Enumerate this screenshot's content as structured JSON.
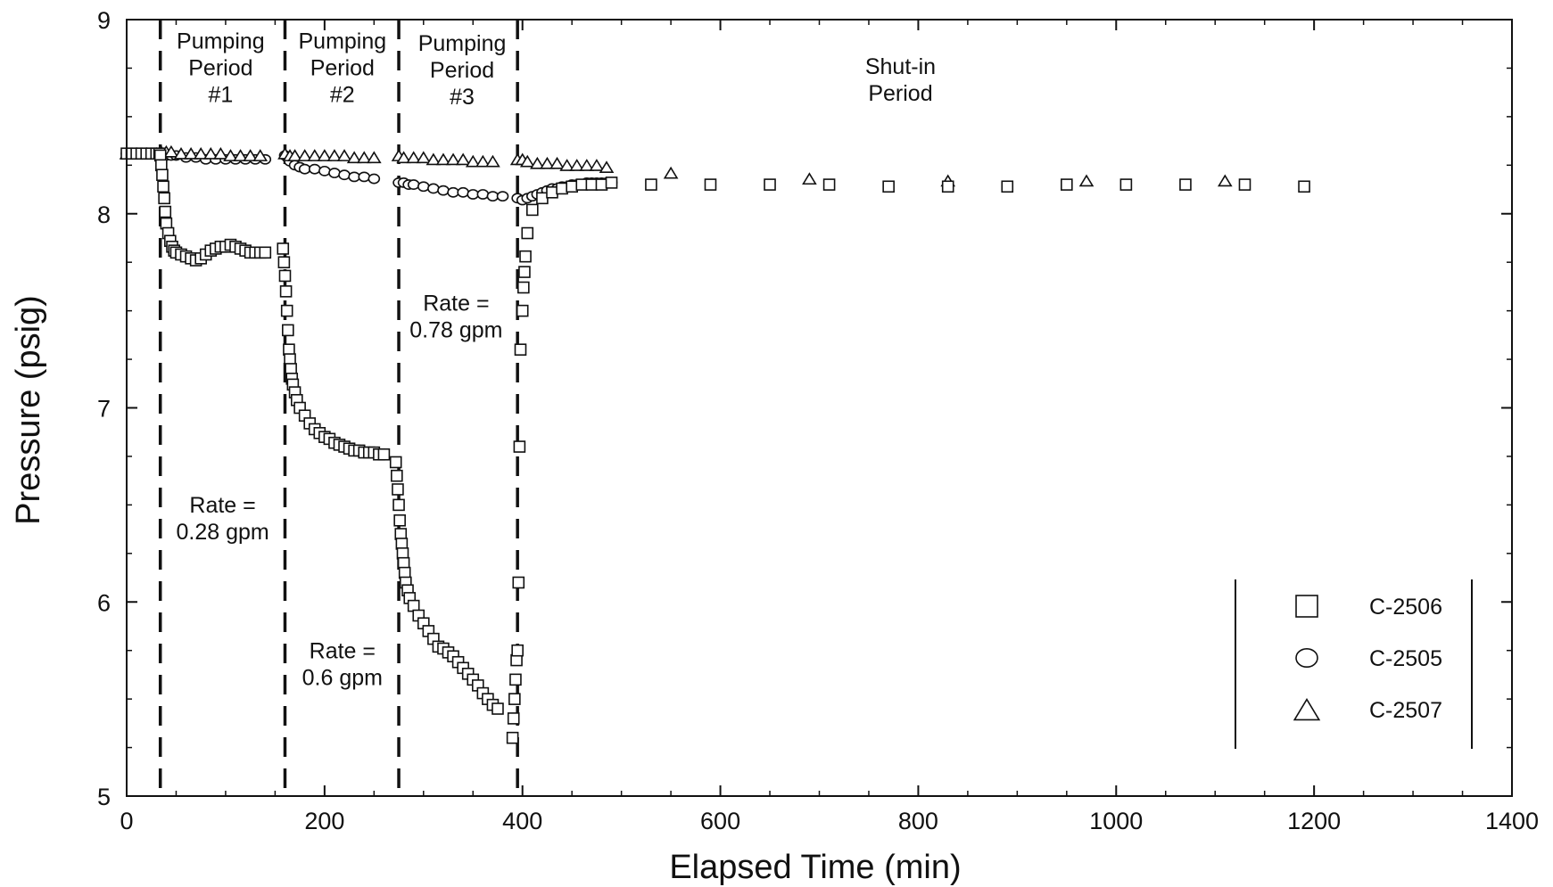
{
  "chart_data": {
    "type": "scatter",
    "xlabel": "Elapsed Time (min)",
    "ylabel": "Pressure (psig)",
    "xlim": [
      0,
      1400
    ],
    "ylim": [
      5,
      9
    ],
    "xticks": [
      0,
      200,
      400,
      600,
      800,
      1000,
      1200,
      1400
    ],
    "yticks": [
      5,
      6,
      7,
      8,
      9
    ],
    "grid": false,
    "legend_position": "bottom-right",
    "period_boundaries": [
      34,
      160,
      275,
      395
    ],
    "annotations": [
      {
        "lines": [
          "Pumping",
          "Period",
          "#1"
        ],
        "x": 95,
        "y": 8.85
      },
      {
        "lines": [
          "Pumping",
          "Period",
          "#2"
        ],
        "x": 218,
        "y": 8.85
      },
      {
        "lines": [
          "Pumping",
          "Period",
          "#3"
        ],
        "x": 339,
        "y": 8.84
      },
      {
        "lines": [
          "Shut-in",
          "Period"
        ],
        "x": 782,
        "y": 8.72
      },
      {
        "lines": [
          "Rate =",
          "0.78 gpm"
        ],
        "x": 333,
        "y": 7.5
      },
      {
        "lines": [
          "Rate =",
          "0.28 gpm"
        ],
        "x": 97,
        "y": 6.46
      },
      {
        "lines": [
          "Rate =",
          "0.6 gpm"
        ],
        "x": 218,
        "y": 5.71
      }
    ],
    "series": [
      {
        "name": "C-2506",
        "marker": "square",
        "x": [
          0,
          5,
          10,
          15,
          20,
          25,
          30,
          33,
          34,
          35,
          36,
          37,
          38,
          39,
          40,
          42,
          44,
          46,
          48,
          50,
          55,
          60,
          65,
          70,
          75,
          80,
          85,
          90,
          95,
          100,
          105,
          110,
          115,
          120,
          125,
          130,
          135,
          140,
          158,
          159,
          160,
          161,
          162,
          163,
          164,
          165,
          166,
          167,
          168,
          170,
          172,
          175,
          180,
          185,
          190,
          195,
          200,
          205,
          210,
          215,
          220,
          225,
          230,
          235,
          240,
          245,
          250,
          255,
          260,
          272,
          273,
          274,
          275,
          276,
          277,
          278,
          279,
          280,
          281,
          282,
          284,
          286,
          290,
          295,
          300,
          305,
          310,
          315,
          320,
          325,
          330,
          335,
          340,
          345,
          350,
          355,
          360,
          365,
          370,
          375,
          390,
          391,
          392,
          393,
          394,
          395,
          396,
          397,
          398,
          400,
          401,
          402,
          403,
          405,
          410,
          420,
          430,
          440,
          450,
          460,
          470,
          480,
          490,
          530,
          590,
          650,
          710,
          770,
          830,
          890,
          950,
          1010,
          1070,
          1130,
          1190
        ],
        "y": [
          8.31,
          8.31,
          8.31,
          8.31,
          8.31,
          8.31,
          8.31,
          8.31,
          8.3,
          8.25,
          8.2,
          8.14,
          8.08,
          8.01,
          7.95,
          7.9,
          7.86,
          7.83,
          7.81,
          7.8,
          7.79,
          7.78,
          7.77,
          7.76,
          7.77,
          7.79,
          7.81,
          7.82,
          7.83,
          7.83,
          7.84,
          7.83,
          7.82,
          7.81,
          7.8,
          7.8,
          7.8,
          7.8,
          7.82,
          7.75,
          7.68,
          7.6,
          7.5,
          7.4,
          7.3,
          7.25,
          7.2,
          7.15,
          7.12,
          7.08,
          7.04,
          7,
          6.96,
          6.92,
          6.89,
          6.87,
          6.85,
          6.84,
          6.82,
          6.81,
          6.8,
          6.79,
          6.78,
          6.78,
          6.77,
          6.77,
          6.77,
          6.76,
          6.76,
          6.72,
          6.65,
          6.58,
          6.5,
          6.42,
          6.35,
          6.3,
          6.25,
          6.2,
          6.15,
          6.1,
          6.06,
          6.02,
          5.98,
          5.93,
          5.89,
          5.85,
          5.81,
          5.77,
          5.76,
          5.74,
          5.72,
          5.69,
          5.66,
          5.63,
          5.6,
          5.57,
          5.53,
          5.5,
          5.47,
          5.45,
          5.3,
          5.4,
          5.5,
          5.6,
          5.7,
          5.75,
          6.1,
          6.8,
          7.3,
          7.5,
          7.62,
          7.7,
          7.78,
          7.9,
          8.02,
          8.08,
          8.11,
          8.13,
          8.14,
          8.15,
          8.15,
          8.15,
          8.16,
          8.15,
          8.15,
          8.15,
          8.15,
          8.14,
          8.14,
          8.14,
          8.15,
          8.15,
          8.15,
          8.15,
          8.14
        ]
      },
      {
        "name": "C-2505",
        "marker": "circle",
        "x": [
          0,
          6,
          12,
          18,
          24,
          30,
          35,
          40,
          45,
          50,
          60,
          70,
          80,
          90,
          100,
          110,
          120,
          130,
          140,
          160,
          165,
          170,
          175,
          180,
          190,
          200,
          210,
          220,
          230,
          240,
          250,
          275,
          280,
          285,
          290,
          300,
          310,
          320,
          330,
          340,
          350,
          360,
          370,
          380,
          395,
          400,
          405,
          410,
          415,
          420,
          425,
          430,
          435,
          440,
          445,
          450,
          455,
          460,
          465,
          470,
          475,
          480,
          485,
          490
        ],
        "y": [
          8.31,
          8.31,
          8.31,
          8.31,
          8.31,
          8.31,
          8.31,
          8.3,
          8.3,
          8.3,
          8.29,
          8.29,
          8.28,
          8.28,
          8.28,
          8.28,
          8.28,
          8.28,
          8.28,
          8.3,
          8.27,
          8.25,
          8.24,
          8.23,
          8.23,
          8.22,
          8.21,
          8.2,
          8.19,
          8.19,
          8.18,
          8.16,
          8.16,
          8.15,
          8.15,
          8.14,
          8.13,
          8.12,
          8.11,
          8.11,
          8.1,
          8.1,
          8.09,
          8.09,
          8.08,
          8.07,
          8.08,
          8.09,
          8.1,
          8.11,
          8.12,
          8.13,
          8.13,
          8.14,
          8.14,
          8.15,
          8.15,
          8.15,
          8.16,
          8.16,
          8.16,
          8.16,
          8.16,
          8.16
        ]
      },
      {
        "name": "C-2507",
        "marker": "triangle",
        "x": [
          0,
          10,
          20,
          30,
          35,
          40,
          45,
          55,
          65,
          75,
          85,
          95,
          105,
          115,
          125,
          135,
          160,
          165,
          170,
          180,
          190,
          200,
          210,
          220,
          230,
          240,
          250,
          275,
          280,
          290,
          300,
          310,
          320,
          330,
          340,
          350,
          360,
          370,
          395,
          400,
          405,
          415,
          425,
          435,
          445,
          455,
          465,
          475,
          485,
          550,
          690,
          830,
          970,
          1110
        ],
        "y": [
          8.31,
          8.31,
          8.31,
          8.31,
          8.32,
          8.32,
          8.32,
          8.31,
          8.31,
          8.31,
          8.31,
          8.31,
          8.3,
          8.3,
          8.3,
          8.3,
          8.31,
          8.3,
          8.3,
          8.3,
          8.3,
          8.3,
          8.3,
          8.3,
          8.29,
          8.29,
          8.29,
          8.3,
          8.29,
          8.29,
          8.29,
          8.28,
          8.28,
          8.28,
          8.28,
          8.27,
          8.27,
          8.27,
          8.28,
          8.28,
          8.27,
          8.26,
          8.26,
          8.26,
          8.25,
          8.25,
          8.25,
          8.25,
          8.24,
          8.21,
          8.18,
          8.17,
          8.17,
          8.17
        ]
      }
    ]
  }
}
